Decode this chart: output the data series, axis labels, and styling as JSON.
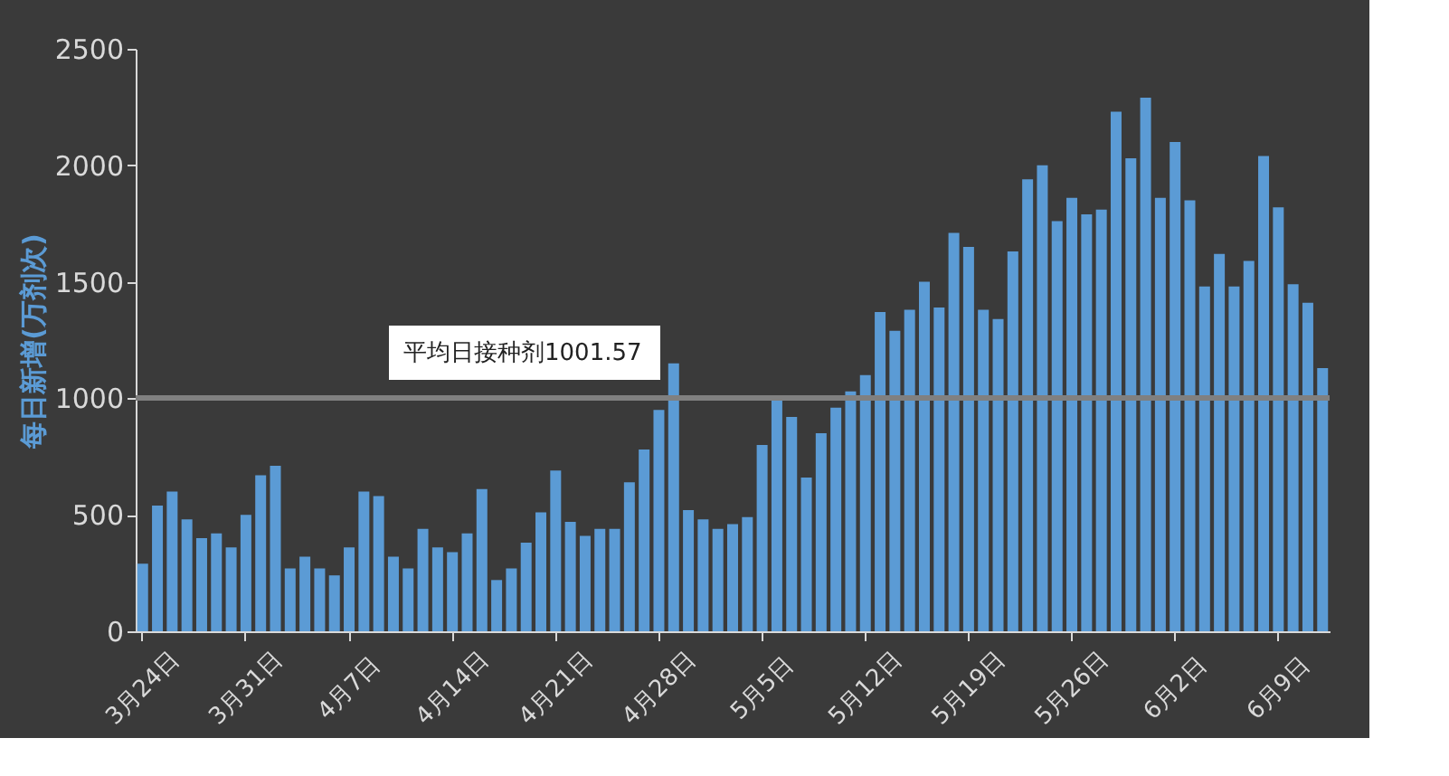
{
  "chart_data": {
    "type": "bar",
    "ylabel": "每日新增(万剂次)",
    "categories": [
      "3月24日",
      null,
      null,
      null,
      null,
      null,
      null,
      "3月31日",
      null,
      null,
      null,
      null,
      null,
      null,
      "4月7日",
      null,
      null,
      null,
      null,
      null,
      null,
      "4月14日",
      null,
      null,
      null,
      null,
      null,
      null,
      "4月21日",
      null,
      null,
      null,
      null,
      null,
      null,
      "4月28日",
      null,
      null,
      null,
      null,
      null,
      null,
      "5月5日",
      null,
      null,
      null,
      null,
      null,
      null,
      "5月12日",
      null,
      null,
      null,
      null,
      null,
      null,
      "5月19日",
      null,
      null,
      null,
      null,
      null,
      null,
      "5月26日",
      null,
      null,
      null,
      null,
      null,
      null,
      "6月2日",
      null,
      null,
      null,
      null,
      null,
      null,
      "6月9日",
      null,
      null,
      null
    ],
    "values": [
      290,
      540,
      600,
      480,
      400,
      420,
      360,
      500,
      670,
      710,
      270,
      320,
      270,
      240,
      360,
      600,
      580,
      320,
      270,
      440,
      360,
      340,
      420,
      610,
      220,
      270,
      380,
      510,
      690,
      470,
      410,
      440,
      440,
      640,
      780,
      950,
      1150,
      520,
      480,
      440,
      460,
      490,
      800,
      990,
      920,
      660,
      850,
      960,
      1030,
      1100,
      1370,
      1290,
      1380,
      1500,
      1390,
      1710,
      1650,
      1380,
      1340,
      1630,
      1940,
      2000,
      1760,
      1860,
      1790,
      1810,
      2230,
      2030,
      2290,
      1860,
      2100,
      1850,
      1480,
      1620,
      1480,
      1590,
      2040,
      1820,
      1490,
      1410,
      1130
    ],
    "color": "#5b9bd5",
    "ylim": [
      0,
      2500
    ],
    "yticks": [
      0,
      500,
      1000,
      1500,
      2000,
      2500
    ],
    "grid": false,
    "ref_lines": [
      {
        "axis": "y",
        "value": 1001.57,
        "label": "平均日接种剂1001.57",
        "color": "#808080"
      }
    ]
  }
}
